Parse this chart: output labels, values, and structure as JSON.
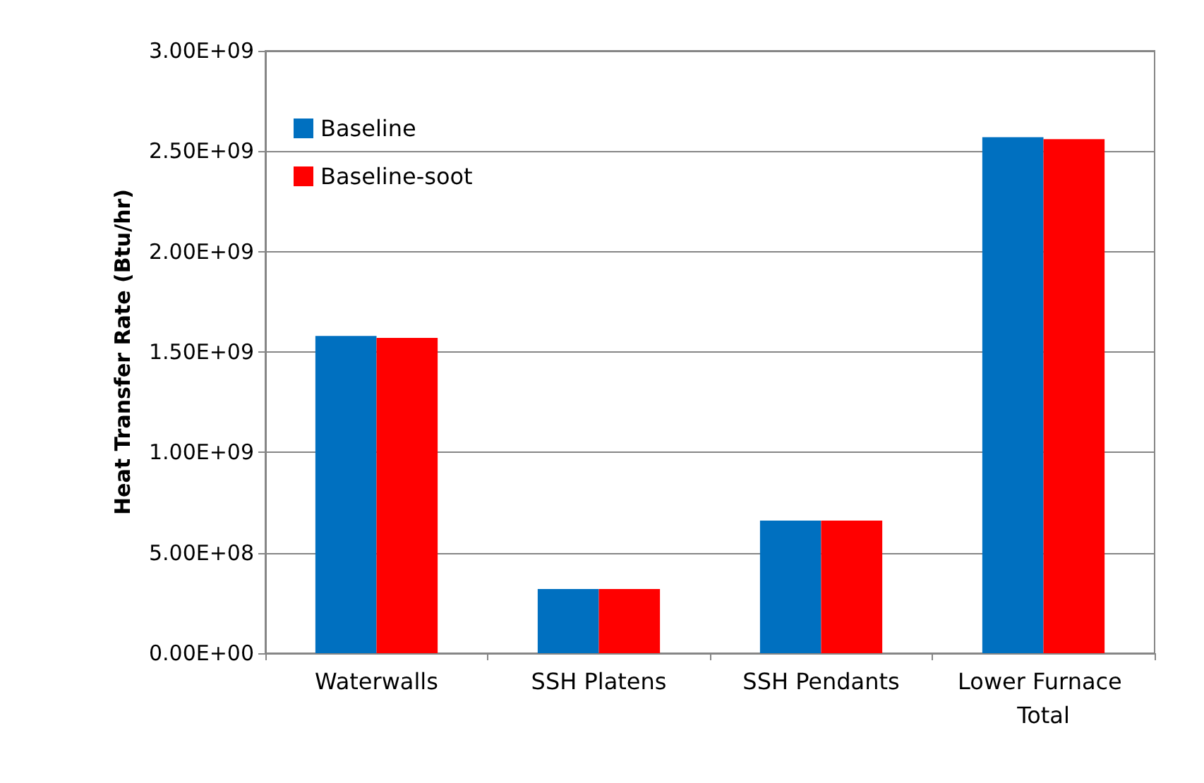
{
  "chart_data": {
    "type": "bar",
    "ylabel": "Heat Transfer Rate (Btu/hr)",
    "categories": [
      "Waterwalls",
      "SSH Platens",
      "SSH Pendants",
      "Lower Furnace Total"
    ],
    "series": [
      {
        "name": "Baseline",
        "color": "#0070c0",
        "values": [
          1580000000.0,
          320000000.0,
          660000000.0,
          2570000000.0
        ]
      },
      {
        "name": "Baseline-soot",
        "color": "#ff0000",
        "values": [
          1570000000.0,
          320000000.0,
          660000000.0,
          2560000000.0
        ]
      }
    ],
    "ylim": [
      0,
      3000000000.0
    ],
    "yticks": [
      {
        "value": 0,
        "label": "0.00E+00"
      },
      {
        "value": 500000000.0,
        "label": "5.00E+08"
      },
      {
        "value": 1000000000.0,
        "label": "1.00E+09"
      },
      {
        "value": 1500000000.0,
        "label": "1.50E+09"
      },
      {
        "value": 2000000000.0,
        "label": "2.00E+09"
      },
      {
        "value": 2500000000.0,
        "label": "2.50E+09"
      },
      {
        "value": 3000000000.0,
        "label": "3.00E+09"
      }
    ],
    "grid": "y",
    "legend": "top left"
  }
}
